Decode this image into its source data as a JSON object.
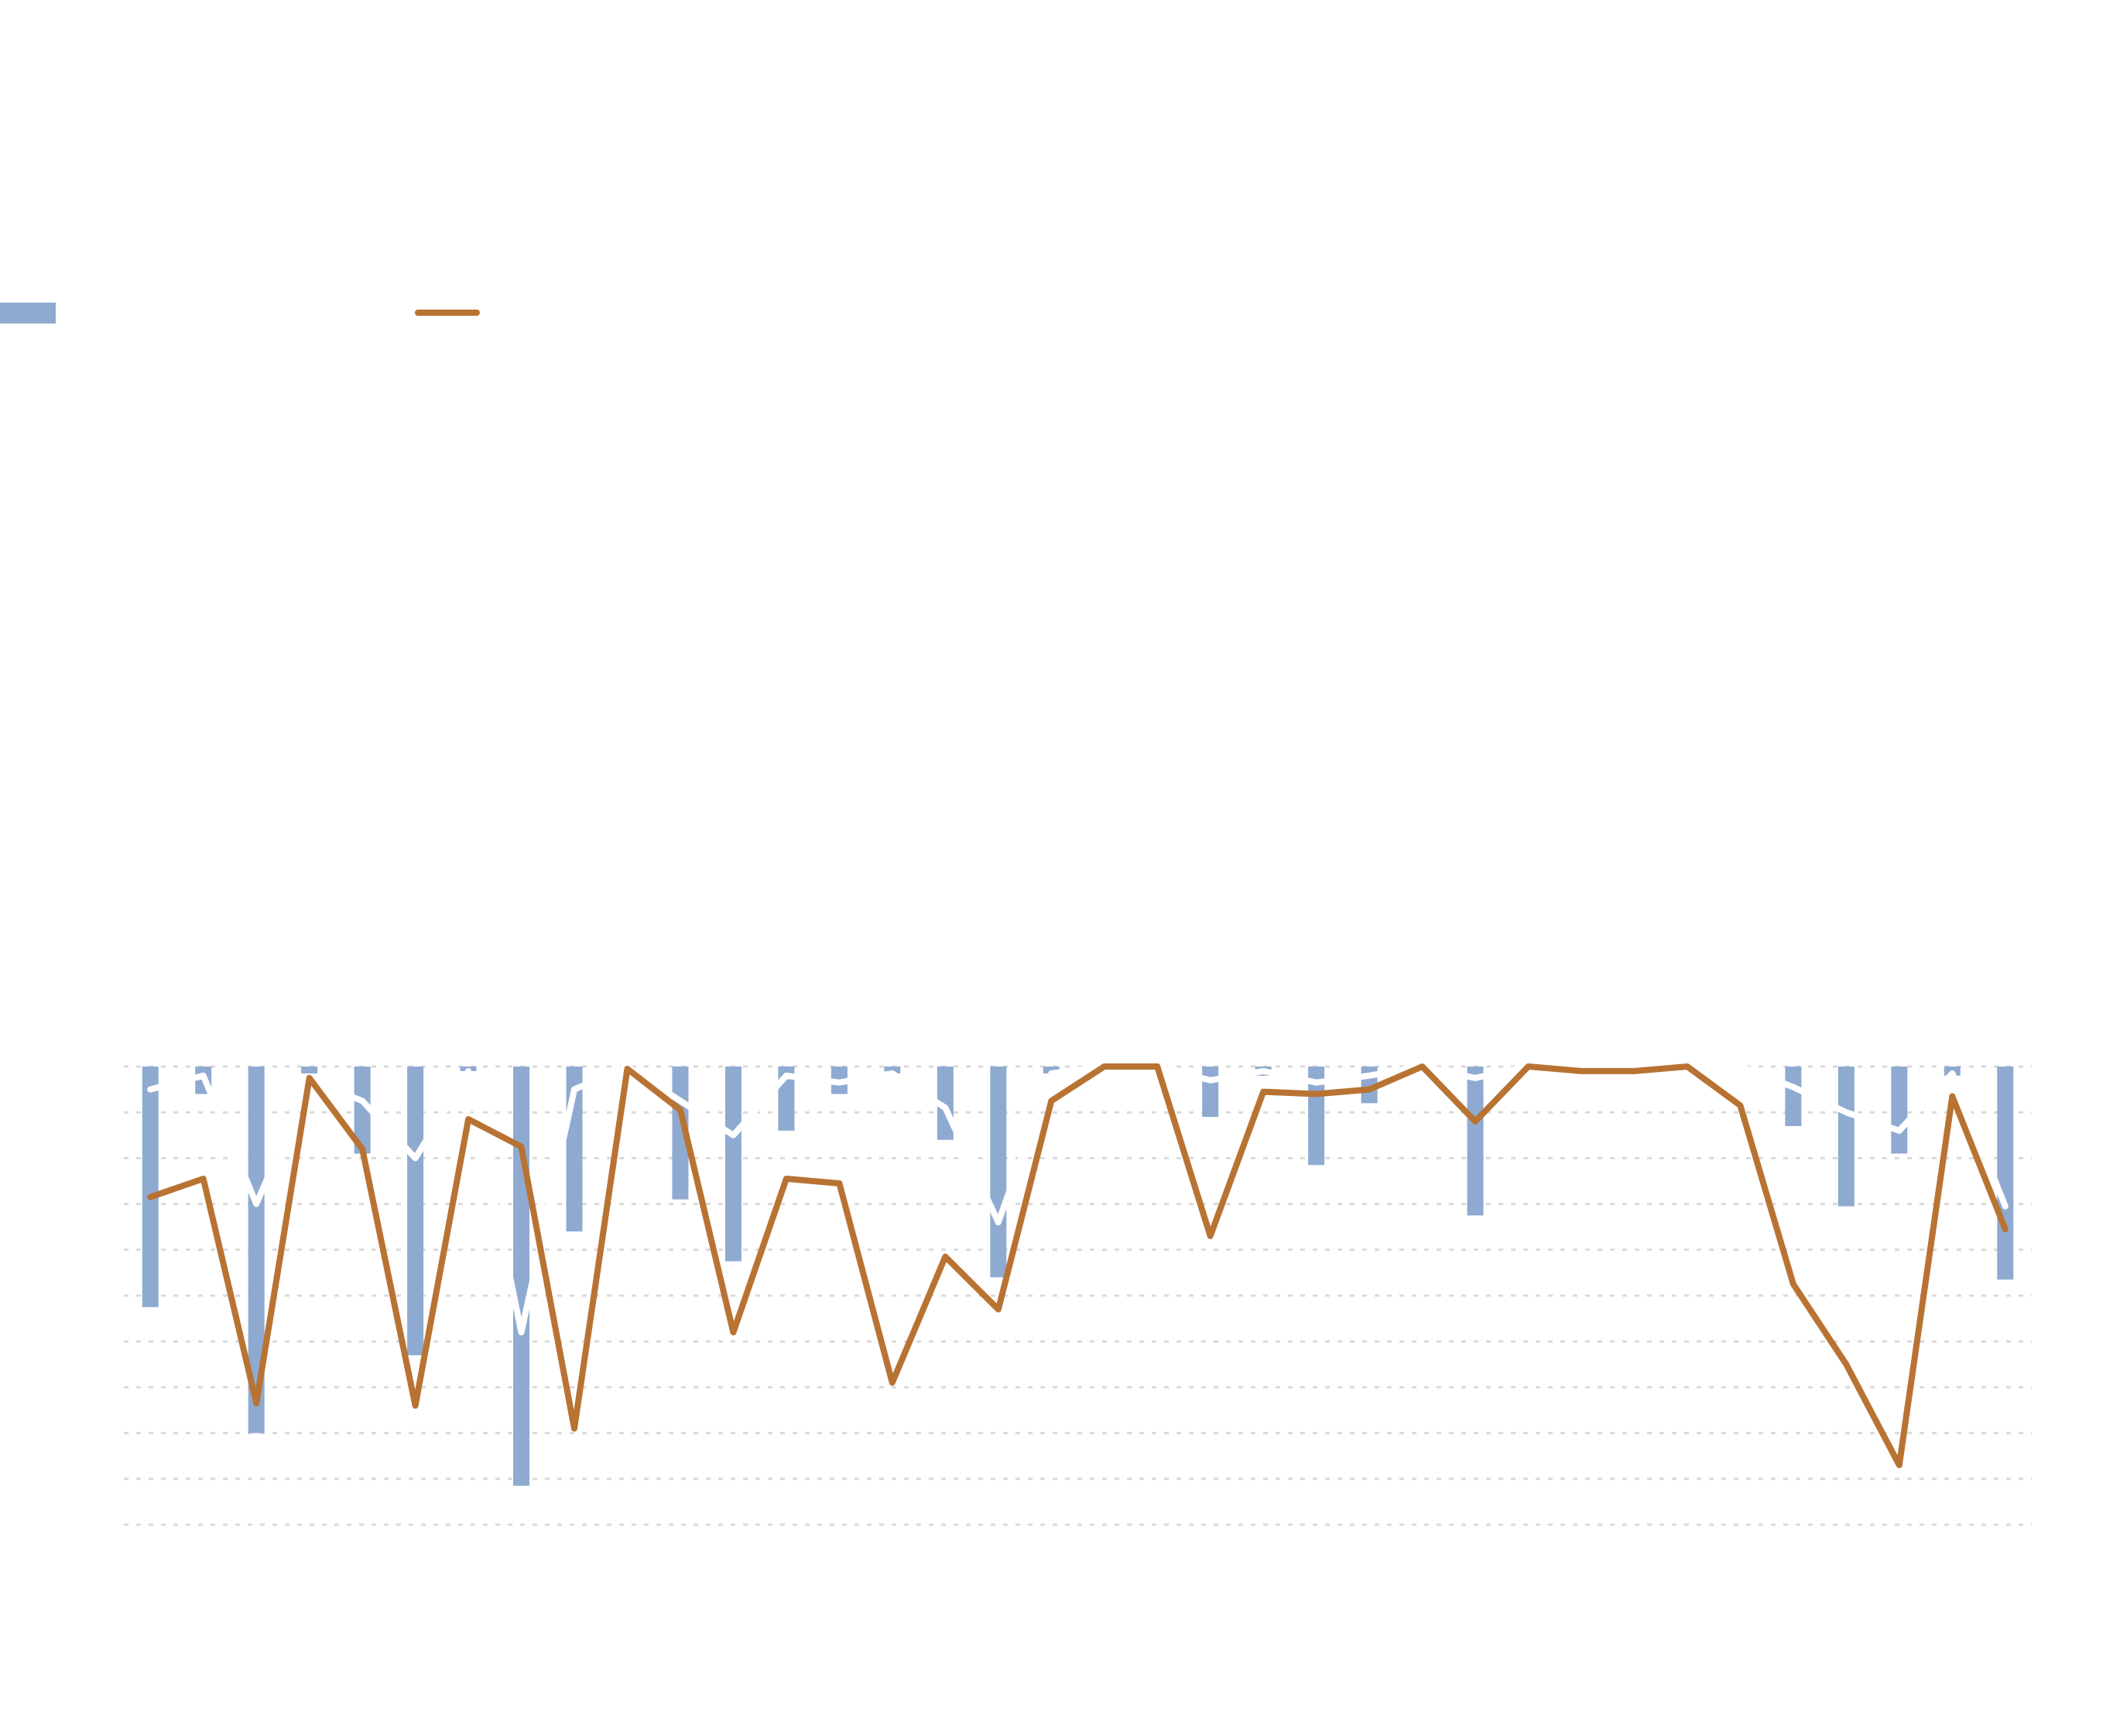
{
  "chart_data": {
    "type": "bar_line",
    "categories": [
      null,
      null,
      null,
      null,
      null,
      null,
      null,
      null,
      null,
      null,
      null,
      null,
      null,
      null,
      null,
      null,
      null,
      null,
      null,
      null,
      null,
      null,
      null,
      null,
      null,
      null,
      null,
      null,
      null,
      null,
      null,
      null,
      null,
      null,
      null,
      null
    ],
    "series": [
      {
        "type": "bar",
        "color": "#8faad1",
        "values": [
          -5.25,
          -0.6,
          -8.0,
          -0.15,
          -1.9,
          -6.3,
          -0.1,
          -9.15,
          -3.6,
          0,
          -2.9,
          -4.25,
          -1.4,
          -0.6,
          -0.15,
          -1.6,
          -4.6,
          -0.15,
          0,
          0,
          -1.1,
          -0.2,
          -2.15,
          -0.8,
          0,
          -3.25,
          0,
          0,
          0,
          0,
          0,
          -1.3,
          -3.05,
          -1.9,
          -0.2,
          -4.65
        ]
      },
      {
        "type": "line",
        "color": "#ffffff",
        "values": [
          -0.5,
          -0.2,
          -3.0,
          -0.3,
          -0.75,
          -2.0,
          -0.1,
          -5.8,
          -0.5,
          0,
          -0.75,
          -1.5,
          -0.2,
          -0.35,
          -0.15,
          -0.9,
          -3.4,
          -0.15,
          0,
          0,
          -0.3,
          -0.1,
          -0.35,
          -0.2,
          0,
          -0.25,
          0,
          0,
          0,
          0,
          0,
          -0.45,
          -1.0,
          -1.4,
          -0.15,
          -3.05
        ]
      },
      {
        "type": "line",
        "color": "#b87333",
        "values": [
          -2.85,
          -2.45,
          -7.35,
          -0.25,
          -1.8,
          -7.4,
          -1.15,
          -1.75,
          -7.9,
          -0.05,
          -0.95,
          -5.8,
          -2.45,
          -2.55,
          -6.9,
          -4.15,
          -5.3,
          -0.75,
          0,
          0,
          -3.7,
          -0.55,
          -0.6,
          -0.5,
          0,
          -1.2,
          0,
          -0.1,
          -0.1,
          0,
          -0.85,
          -4.75,
          -6.5,
          -8.7,
          -0.65,
          -3.55
        ]
      }
    ],
    "ylim": [
      -10,
      0
    ],
    "yticks": [
      0,
      -1,
      -2,
      -3,
      -4,
      -5,
      -6,
      -7,
      -8,
      -9,
      -10
    ],
    "grid": true
  }
}
